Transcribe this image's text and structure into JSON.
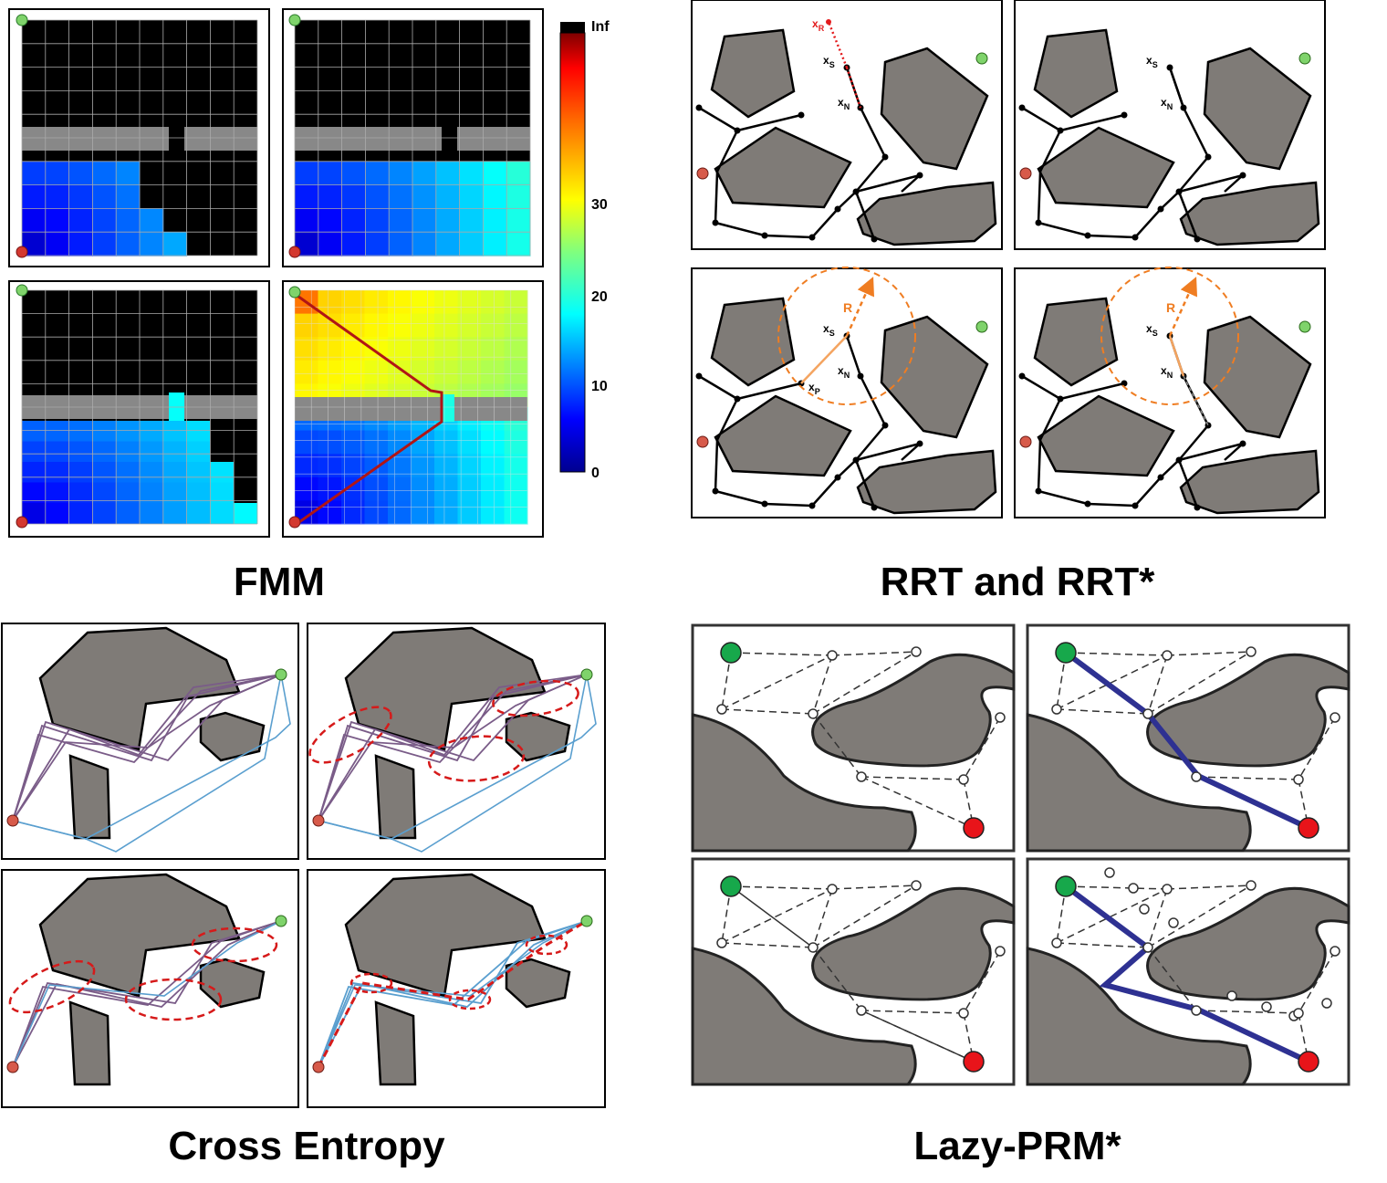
{
  "titles": {
    "fmm": "FMM",
    "rrt": "RRT and RRT*",
    "cross_entropy": "Cross Entropy",
    "lazy_prm": "Lazy-PRM*"
  },
  "colorbar": {
    "ticks": [
      "Inf",
      "30",
      "20",
      "10",
      "0"
    ]
  },
  "rrt_labels": {
    "xR": "x",
    "xR_sub": "R",
    "xS": "x",
    "xS_sub": "S",
    "xN": "x",
    "xN_sub": "N",
    "xP": "x",
    "xP_sub": "P",
    "R": "R"
  },
  "colors": {
    "obstacle": "#7f7b77",
    "start": "#7fd36b",
    "goal": "#d3382f",
    "prm_start": "#17a84b",
    "prm_goal": "#e8141a",
    "rrt_orange": "#ef7d22",
    "ce_purple": "#7a5c88",
    "ce_blue": "#5a9fcf",
    "prm_path": "#2e3192"
  }
}
